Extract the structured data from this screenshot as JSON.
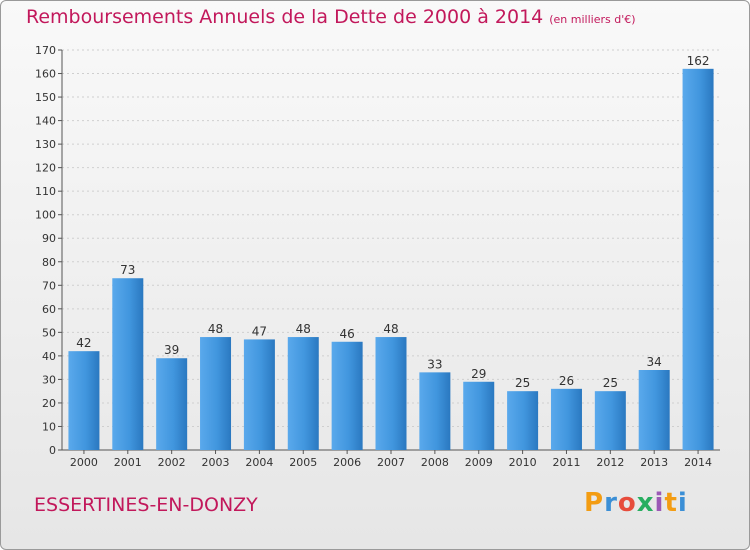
{
  "chart_data": {
    "type": "bar",
    "title": "Remboursements Annuels de la Dette de 2000 à 2014",
    "subtitle": "(en milliers d'€)",
    "categories": [
      "2000",
      "2001",
      "2002",
      "2003",
      "2004",
      "2005",
      "2006",
      "2007",
      "2008",
      "2009",
      "2010",
      "2011",
      "2012",
      "2013",
      "2014"
    ],
    "values": [
      42,
      73,
      39,
      48,
      47,
      48,
      46,
      48,
      33,
      29,
      25,
      26,
      25,
      34,
      162
    ],
    "ylim": [
      0,
      170
    ],
    "yticks": [
      0,
      10,
      20,
      30,
      40,
      50,
      60,
      70,
      80,
      90,
      100,
      110,
      120,
      130,
      140,
      150,
      160,
      170
    ],
    "grid": true,
    "bar_color": "#3d8fd6"
  },
  "footer": {
    "commune": "ESSERTINES-EN-DONZY",
    "logo": {
      "letters": [
        "P",
        "r",
        "o",
        "x",
        "i",
        "t",
        "i"
      ],
      "colors": [
        "#f39c12",
        "#3b8fd6",
        "#e74c3c",
        "#27ae60",
        "#9b59b6",
        "#f39c12",
        "#3b8fd6"
      ]
    }
  }
}
